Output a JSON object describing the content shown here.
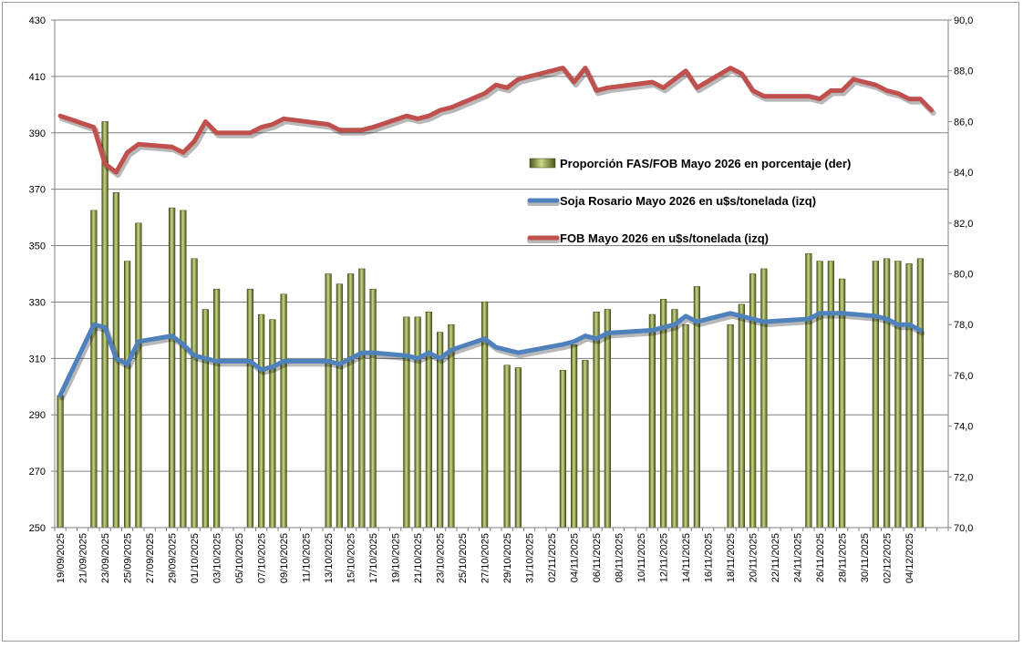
{
  "chart_data": {
    "type": "bar",
    "colors": {
      "bar": "#6f7d2c",
      "bar_highlight": "#c9d98a",
      "soja_line": "#4f81bd",
      "fob_line": "#c0504d",
      "grid": "#808080"
    },
    "legend": [
      {
        "key": "fas",
        "label": "Proporción FAS/FOB Mayo 2026 en porcentaje (der)"
      },
      {
        "key": "soja",
        "label": "Soja Rosario Mayo 2026 en u$s/tonelada (izq)"
      },
      {
        "key": "fob",
        "label": "FOB Mayo 2026 en u$s/tonelada (izq)"
      }
    ],
    "left_axis": {
      "min": 250,
      "max": 430,
      "ticks": [
        "250",
        "270",
        "290",
        "310",
        "330",
        "350",
        "370",
        "390",
        "410",
        "430"
      ]
    },
    "right_axis": {
      "min": 70,
      "max": 90,
      "ticks": [
        "70,0",
        "72,0",
        "74,0",
        "76,0",
        "78,0",
        "80,0",
        "82,0",
        "84,0",
        "86,0",
        "88,0",
        "90,0"
      ]
    },
    "x_labels": [
      "19/09/2025",
      "21/09/2025",
      "23/09/2025",
      "25/09/2025",
      "27/09/2025",
      "29/09/2025",
      "01/10/2025",
      "03/10/2025",
      "05/10/2025",
      "07/10/2025",
      "09/10/2025",
      "11/10/2025",
      "13/10/2025",
      "15/10/2025",
      "17/10/2025",
      "19/10/2025",
      "21/10/2025",
      "23/10/2025",
      "25/10/2025",
      "27/10/2025",
      "29/10/2025",
      "31/10/2025",
      "02/11/2025",
      "04/11/2025",
      "06/11/2025",
      "08/11/2025",
      "10/11/2025",
      "12/11/2025",
      "14/11/2025",
      "16/11/2025",
      "18/11/2025",
      "20/11/2025",
      "22/11/2025",
      "24/11/2025",
      "26/11/2025",
      "28/11/2025",
      "30/11/2025",
      "02/12/2025",
      "04/12/2025"
    ],
    "day_count": 80,
    "series": {
      "fas": {
        "name": "Proporción FAS/FOB Mayo 2026 en porcentaje (der)",
        "points": [
          [
            0,
            75.2
          ],
          [
            3,
            82.5
          ],
          [
            4,
            86.0
          ],
          [
            5,
            83.2
          ],
          [
            6,
            80.5
          ],
          [
            7,
            82.0
          ],
          [
            10,
            82.6
          ],
          [
            11,
            82.5
          ],
          [
            12,
            80.6
          ],
          [
            13,
            78.6
          ],
          [
            14,
            79.4
          ],
          [
            17,
            79.4
          ],
          [
            18,
            78.4
          ],
          [
            19,
            78.2
          ],
          [
            20,
            79.2
          ],
          [
            24,
            80.0
          ],
          [
            25,
            79.6
          ],
          [
            26,
            80.0
          ],
          [
            27,
            80.2
          ],
          [
            28,
            79.4
          ],
          [
            31,
            78.3
          ],
          [
            32,
            78.3
          ],
          [
            33,
            78.5
          ],
          [
            34,
            77.7
          ],
          [
            35,
            78.0
          ],
          [
            38,
            78.9
          ],
          [
            40,
            76.4
          ],
          [
            41,
            76.3
          ],
          [
            45,
            76.2
          ],
          [
            46,
            77.2
          ],
          [
            47,
            76.6
          ],
          [
            48,
            78.5
          ],
          [
            49,
            78.6
          ],
          [
            53,
            78.4
          ],
          [
            54,
            79.0
          ],
          [
            55,
            78.6
          ],
          [
            56,
            78.0
          ],
          [
            57,
            79.5
          ],
          [
            60,
            78.0
          ],
          [
            61,
            78.8
          ],
          [
            62,
            80.0
          ],
          [
            63,
            80.2
          ],
          [
            67,
            80.8
          ],
          [
            68,
            80.5
          ],
          [
            69,
            80.5
          ],
          [
            70,
            79.8
          ],
          [
            73,
            80.5
          ],
          [
            74,
            80.6
          ],
          [
            75,
            80.5
          ],
          [
            76,
            80.4
          ],
          [
            77,
            80.6
          ]
        ]
      },
      "soja": {
        "name": "Soja Rosario Mayo 2026 en u$s/tonelada (izq)",
        "points": [
          [
            0,
            297
          ],
          [
            3,
            322
          ],
          [
            4,
            321
          ],
          [
            5,
            310
          ],
          [
            6,
            308
          ],
          [
            7,
            316
          ],
          [
            10,
            318
          ],
          [
            11,
            315
          ],
          [
            12,
            311
          ],
          [
            13,
            310
          ],
          [
            14,
            309
          ],
          [
            17,
            309
          ],
          [
            18,
            306
          ],
          [
            19,
            307
          ],
          [
            20,
            309
          ],
          [
            24,
            309
          ],
          [
            25,
            308
          ],
          [
            26,
            310
          ],
          [
            27,
            312
          ],
          [
            28,
            312
          ],
          [
            31,
            311
          ],
          [
            32,
            310
          ],
          [
            33,
            312
          ],
          [
            34,
            310
          ],
          [
            35,
            313
          ],
          [
            38,
            317
          ],
          [
            39,
            314
          ],
          [
            40,
            313
          ],
          [
            41,
            312
          ],
          [
            45,
            315
          ],
          [
            46,
            316
          ],
          [
            47,
            318
          ],
          [
            48,
            317
          ],
          [
            49,
            319
          ],
          [
            53,
            320
          ],
          [
            54,
            321
          ],
          [
            55,
            322
          ],
          [
            56,
            325
          ],
          [
            57,
            323
          ],
          [
            60,
            326
          ],
          [
            61,
            325
          ],
          [
            62,
            324
          ],
          [
            63,
            323
          ],
          [
            67,
            324
          ],
          [
            68,
            326
          ],
          [
            69,
            326
          ],
          [
            70,
            326
          ],
          [
            73,
            325
          ],
          [
            74,
            324
          ],
          [
            75,
            322
          ],
          [
            76,
            322
          ],
          [
            77,
            320
          ]
        ]
      },
      "fob": {
        "name": "FOB Mayo 2026 en u$s/tonelada (izq)",
        "points": [
          [
            0,
            396
          ],
          [
            3,
            392
          ],
          [
            4,
            379
          ],
          [
            5,
            376
          ],
          [
            6,
            383
          ],
          [
            7,
            386
          ],
          [
            10,
            385
          ],
          [
            11,
            383
          ],
          [
            12,
            387
          ],
          [
            13,
            394
          ],
          [
            14,
            390
          ],
          [
            17,
            390
          ],
          [
            18,
            392
          ],
          [
            19,
            393
          ],
          [
            20,
            395
          ],
          [
            24,
            393
          ],
          [
            25,
            391
          ],
          [
            26,
            391
          ],
          [
            27,
            391
          ],
          [
            28,
            392
          ],
          [
            31,
            396
          ],
          [
            32,
            395
          ],
          [
            33,
            396
          ],
          [
            34,
            398
          ],
          [
            35,
            399
          ],
          [
            38,
            404
          ],
          [
            39,
            407
          ],
          [
            40,
            406
          ],
          [
            41,
            409
          ],
          [
            45,
            413
          ],
          [
            46,
            408
          ],
          [
            47,
            413
          ],
          [
            48,
            405
          ],
          [
            49,
            406
          ],
          [
            53,
            408
          ],
          [
            54,
            406
          ],
          [
            55,
            409
          ],
          [
            56,
            412
          ],
          [
            57,
            406
          ],
          [
            60,
            413
          ],
          [
            61,
            411
          ],
          [
            62,
            405
          ],
          [
            63,
            403
          ],
          [
            67,
            403
          ],
          [
            68,
            402
          ],
          [
            69,
            405
          ],
          [
            70,
            405
          ],
          [
            71,
            409
          ],
          [
            73,
            407
          ],
          [
            74,
            405
          ],
          [
            75,
            404
          ],
          [
            76,
            402
          ],
          [
            77,
            402
          ],
          [
            78,
            398
          ]
        ]
      }
    }
  }
}
